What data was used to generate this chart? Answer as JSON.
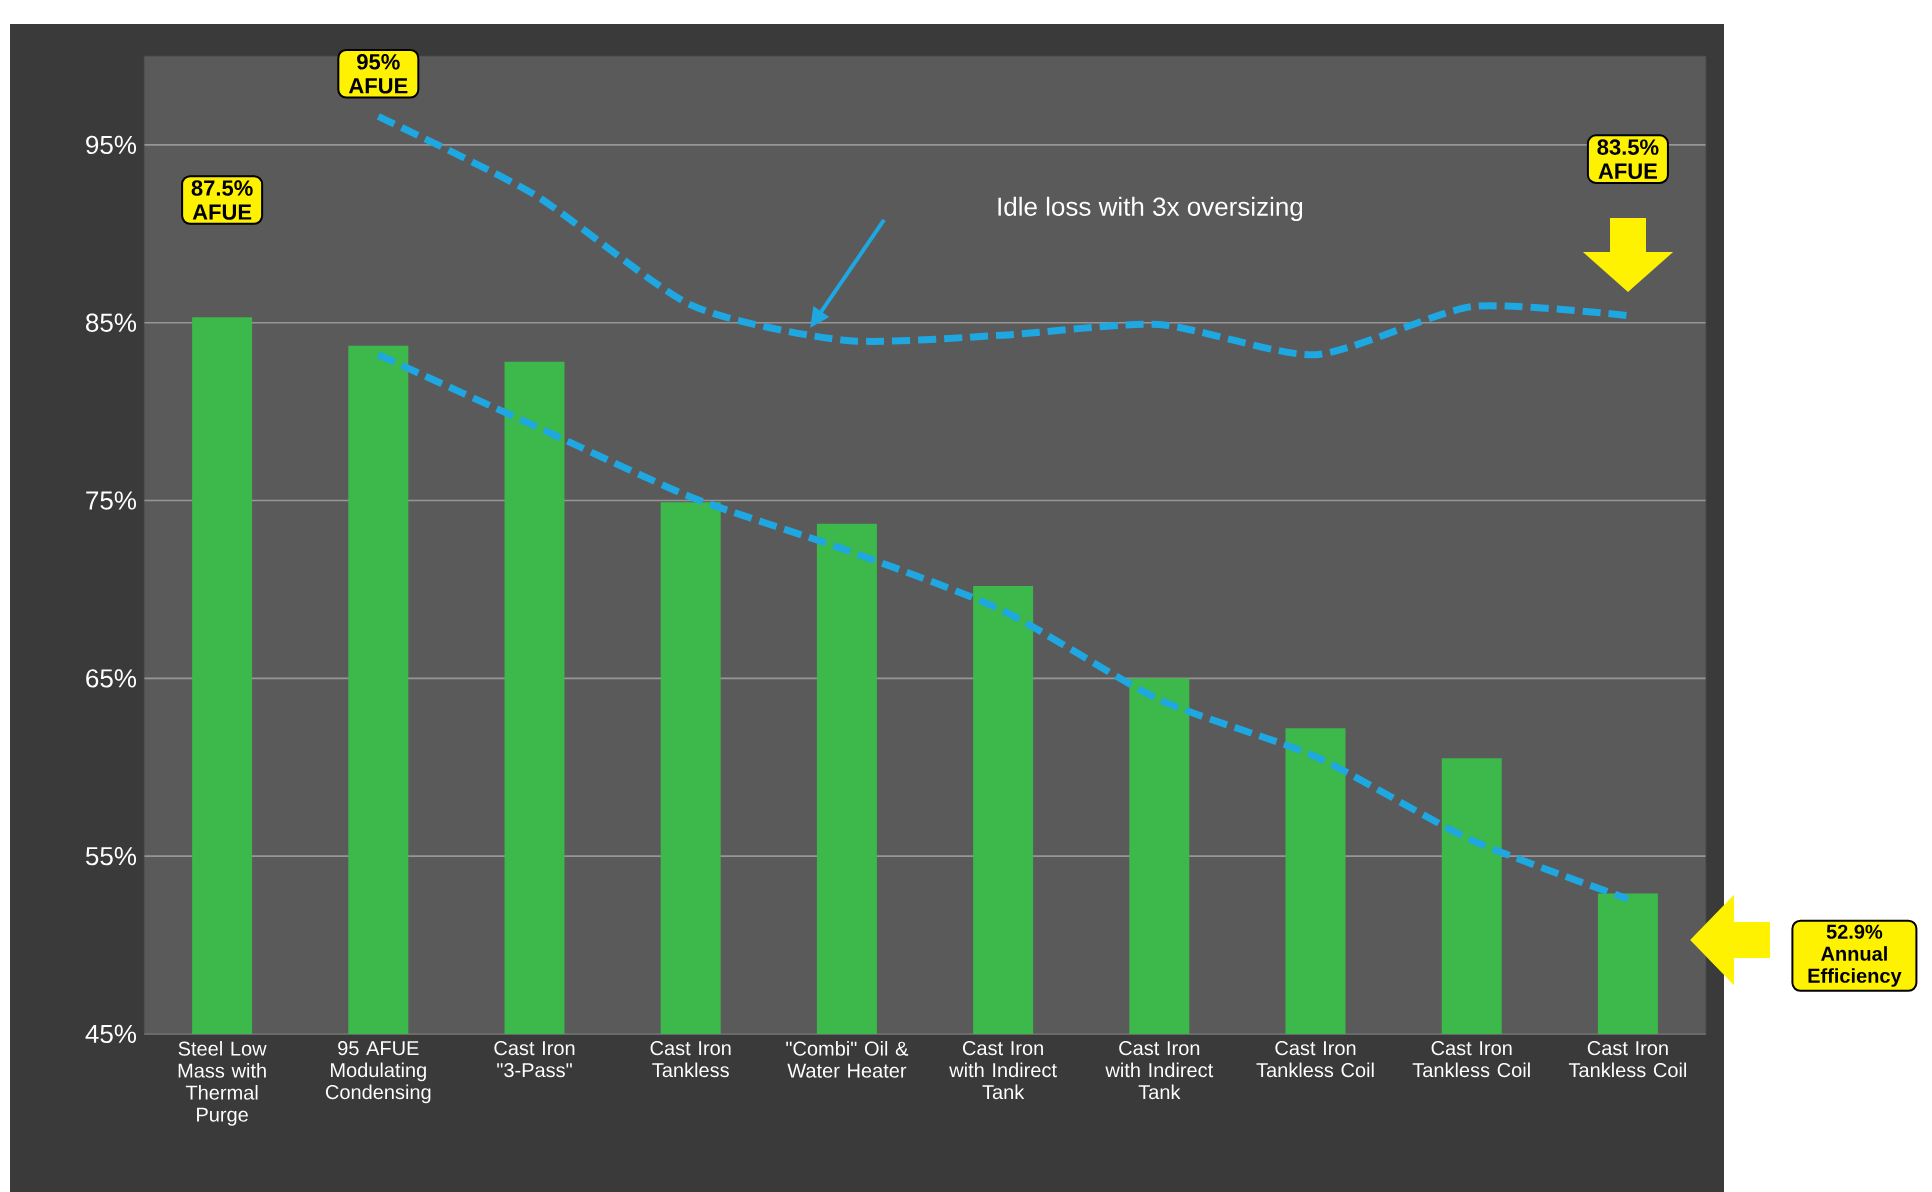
{
  "chart_data": {
    "type": "bar",
    "categories": [
      "Steel Low Mass with Thermal Purge",
      "95 AFUE Modulating Condensing",
      "Cast Iron \"3-Pass\"",
      "Cast Iron Tankless",
      "\"Combi\" Oil & Water Heater",
      "Cast Iron with Indirect Tank",
      "Cast Iron with Indirect Tank",
      "Cast Iron Tankless Coil",
      "Cast Iron Tankless Coil",
      "Cast Iron Tankless Coil"
    ],
    "series": [
      {
        "color": "#3cb94a",
        "values": [
          85.3,
          83.7,
          82.8,
          74.9,
          73.7,
          70.2,
          65.0,
          62.2,
          60.5,
          52.9
        ]
      },
      {
        "type": "line",
        "color": "#1ea7e1",
        "values": [
          null,
          96.6,
          92.2,
          86.0,
          84.0,
          84.3,
          84.9,
          83.2,
          85.9,
          85.4
        ]
      },
      {
        "type": "line",
        "color": "#1ea7e1",
        "values": [
          null,
          83.2,
          79.2,
          75.2,
          72.2,
          68.8,
          63.8,
          60.6,
          55.9,
          52.6
        ]
      }
    ],
    "line_style": "dashed",
    "ylim": [
      45,
      100
    ],
    "yticks": [
      {
        "value": 45,
        "label": "45%"
      },
      {
        "value": 55,
        "label": "55%"
      },
      {
        "value": 65,
        "label": "65%"
      },
      {
        "value": 75,
        "label": "75%"
      },
      {
        "value": 85,
        "label": "85%"
      },
      {
        "value": 95,
        "label": "95%"
      }
    ],
    "grid": "y",
    "annotations": [
      "87.5% AFUE",
      "95% AFUE",
      "83.5% AFUE",
      "52.9% Annual Efficiency",
      "Idle loss with 3x oversizing"
    ]
  }
}
